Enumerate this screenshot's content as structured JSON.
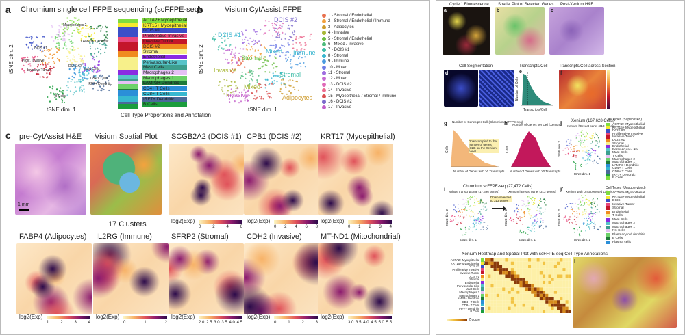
{
  "left_figure": {
    "panel_a": {
      "letter": "a",
      "title": "Chromium single cell FFPE sequencing (scFFPE-seq)",
      "xlabel": "tSNE dim. 1",
      "ylabel": "tSNE dim. 2",
      "caption": "Cell Type Proportions and Annotation",
      "annotations": [
        "ACTA2+ Myoepithelial",
        "KRT15+ Myoepithelial",
        "DCIS #1",
        "Proliferative Invasive",
        "Invasive Tumor",
        "DCIS #2",
        "Stromal",
        "Endothelial",
        "Perivascular-Like",
        "Mast Cells",
        "Macrophages 2",
        "Macrophages 1",
        "LAMP3+ Dendritic",
        "CD4+ T Cells",
        "CD8+ T Cells",
        "IRF7+ Dendritic",
        "B Cells"
      ],
      "cluster_labels": [
        "Macrophages 2",
        "LAMP3+ Dendritic",
        "DCIS #1",
        "Prolif. Invasive",
        "Invasive Tumor",
        "DCIS #2",
        "Mast Cells",
        "CD8+ T Cells",
        "IRF7+ Dendritic",
        "B Cells"
      ]
    },
    "panel_b": {
      "letter": "b",
      "title": "Visium CytAssist FFPE",
      "xlabel": "tSNE dim. 1",
      "ylabel": "tSNE dim. 2",
      "legend": [
        "1 - Stromal / Endothelial",
        "2 - Stromal / Endothelial / Immune",
        "3 - Adipocytes",
        "4 - Invasive",
        "5 - Stromal / Endothelial",
        "6 - Mixed / Invasive",
        "7 - DCIS #1",
        "8 - Stromal",
        "9 - Immune",
        "10 - Mixed",
        "11 - Stromal",
        "12 - Mixed",
        "13 - DCIS #2",
        "14 - Invasive",
        "15 - Myoepithelial / Stromal / Immune",
        "16 - DCIS #2",
        "17 - Invasive"
      ],
      "cluster_labels": [
        "DCIS #2",
        "DCIS #1",
        "Mixed",
        "Immune",
        "Stromal",
        "Invasive",
        "Mixed",
        "Stromal",
        "Adipocytes",
        "Invasive"
      ]
    },
    "panel_c": {
      "letter": "c",
      "row1": [
        {
          "title": "pre-CytAssist H&E",
          "scale": "1 mm"
        },
        {
          "title": "Visium Spatial Plot",
          "sub": "17 Clusters"
        },
        {
          "title": "SCGB2A2 (DCIS #1)",
          "cbar_label": "log2(Exp)",
          "ticks": [
            "0",
            "2",
            "4",
            "6"
          ]
        },
        {
          "title": "CPB1 (DCIS #2)",
          "cbar_label": "log2(Exp)",
          "ticks": [
            "0",
            "2",
            "4",
            "6",
            "8"
          ]
        },
        {
          "title": "KRT17 (Myoepithelial)",
          "cbar_label": "log2(Exp)",
          "ticks": [
            "0",
            "1",
            "2",
            "3",
            "4"
          ]
        }
      ],
      "row2": [
        {
          "title": "FABP4 (Adipocytes)",
          "cbar_label": "log2(Exp)",
          "ticks": [
            "1",
            "2",
            "3",
            "4"
          ]
        },
        {
          "title": "IL2RG (Immune)",
          "cbar_label": "log2(Exp)",
          "ticks": [
            "0",
            "1",
            "2"
          ]
        },
        {
          "title": "SFRP2 (Stromal)",
          "cbar_label": "log2(Exp)",
          "ticks": [
            "2.0",
            "2.5",
            "3.0",
            "3.5",
            "4.0",
            "4.5"
          ]
        },
        {
          "title": "CDH2 (Invasive)",
          "cbar_label": "log2(Exp)",
          "ticks": [
            "0",
            "1",
            "2",
            "3"
          ]
        },
        {
          "title": "MT-ND1 (Mitochondrial)",
          "cbar_label": "log2(Exp)",
          "ticks": [
            "3.0",
            "3.5",
            "4.0",
            "4.5",
            "5.0",
            "5.5"
          ]
        }
      ]
    }
  },
  "right_figure": {
    "a": {
      "letter": "a",
      "title": "Cycle 1 Fluorescence"
    },
    "b": {
      "letter": "b",
      "title": "Spatial Plot of Selected Genes"
    },
    "c": {
      "letter": "c",
      "title": "Post-Xenium H&E"
    },
    "d": {
      "letter": "d",
      "title": "Cell Segmentation"
    },
    "e": {
      "letter": "e",
      "title": "Transcripts/Cell",
      "xlabel": "Transcripts/Cell",
      "ylabel": "Number of Cells"
    },
    "f": {
      "letter": "f",
      "title": "Transcripts/Cell across Section"
    },
    "g": {
      "letter": "g",
      "title": "Number of Genes per Cell (Chromium scFFPE-seq)",
      "xlabel": "Number of Genes with >0 Transcripts",
      "ylabel": "Cells",
      "note": "Downsampled to the number of genes (313) on the Xenium panel"
    },
    "h": {
      "letter": "h",
      "title": "Number of Genes per Cell (Xenium)",
      "xlabel": "Number of Genes with >0 Transcripts",
      "ylabel": "Cells"
    },
    "i": {
      "letter": "i",
      "title": "Chromium scFFPE-seq (27,472 Cells)",
      "sub1": "Whole transcriptome (17,696 genes)",
      "sub2": "Xenium hBreast panel (313 genes)",
      "arrow_note": "Down-selected to 313 genes",
      "xlabel": "tSNE dim. 1",
      "ylabel": "tSNE dim. 2"
    },
    "j": {
      "letter": "j",
      "title": "Xenium (167,628 Cells)",
      "sub": "Xenium hBreast panel (313 genes)",
      "xlabel": "tSNE dim. 1",
      "ylabel": "tSNE dim. 2",
      "legend_title": "Cell Types (Supervised)",
      "legend": [
        "ACTA2+ Myoepithelial",
        "KRT15+ Myoepithelial",
        "DCIS #2",
        "Proliferative Invasive",
        "Invasive Tumor",
        "DCIS #1",
        "Stromal",
        "Endothelial",
        "Perivascular-Like",
        "Mast Cells",
        "T Cells",
        "Macrophages 2",
        "Macrophages 1",
        "LAMP3+ Dendritic",
        "CD4+ T Cells",
        "CD8+ T Cells",
        "IRF7+ Dendritic",
        "B Cells"
      ]
    },
    "j2": {
      "letter": "j'",
      "title": "Xenium with Unsupervised Labels",
      "xlabel": "tSNE dim. 1",
      "ylabel": "tSNE dim. 2",
      "legend_title": "Cell Types (Unsupervised)",
      "legend": [
        "ACTA2+ Myoepithelial",
        "KRT15+ Myoepithelial",
        "DCIS",
        "Invasive Tumor",
        "Stromal",
        "Endothelial",
        "T Cells",
        "Mast Cells",
        "Macrophages 2",
        "Macrophages 1",
        "NK Cells",
        "Plasmacytoid dendritic",
        "B Cells",
        "Plasma cells"
      ]
    },
    "k": {
      "letter": "k",
      "title": "Xenium Heatmap and Spatial Plot with scFFPE-seq Cell Type Annotations",
      "rows": [
        "ACTA2+ Myoepithelial",
        "KRT15+ Myoepithelial",
        "DCIS #2",
        "Proliferative Invasive",
        "Invasive Tumor",
        "DCIS #1",
        "Stromal",
        "Endothelial",
        "Perivascular-Like",
        "Mast Cells",
        "Macrophages 2",
        "Macrophages 1",
        "LAMP3+ Dendritic",
        "CD4+ T Cells",
        "CD8+ T Cells",
        "IRF7+ Dendritic",
        "B Cells"
      ],
      "scale_label": "Z-score"
    },
    "l": {
      "letter": "l"
    }
  },
  "colors": {
    "annotation": [
      "#7fdc3e",
      "#f5ea2f",
      "#3b4fc8",
      "#e8477c",
      "#c4162a",
      "#f08b1f",
      "#f7f08a",
      "#8a2be2",
      "#57c3c8",
      "#3d9f8e",
      "#e5c1f5",
      "#6dd26a",
      "#1f7a3a",
      "#2b8fd8",
      "#37b8d0",
      "#4a6a9a",
      "#1b9d3d"
    ],
    "visium": [
      "#e8714f",
      "#f2a03c",
      "#ce9b2d",
      "#a8b837",
      "#6cbd45",
      "#4dbb7c",
      "#40bda8",
      "#3bb6cf",
      "#4b9be0",
      "#6f7ce6",
      "#9f6de0",
      "#c66ad2",
      "#e069b8",
      "#ec6c8f",
      "#d94f4f",
      "#7c6bcc",
      "#c35ec9"
    ]
  }
}
